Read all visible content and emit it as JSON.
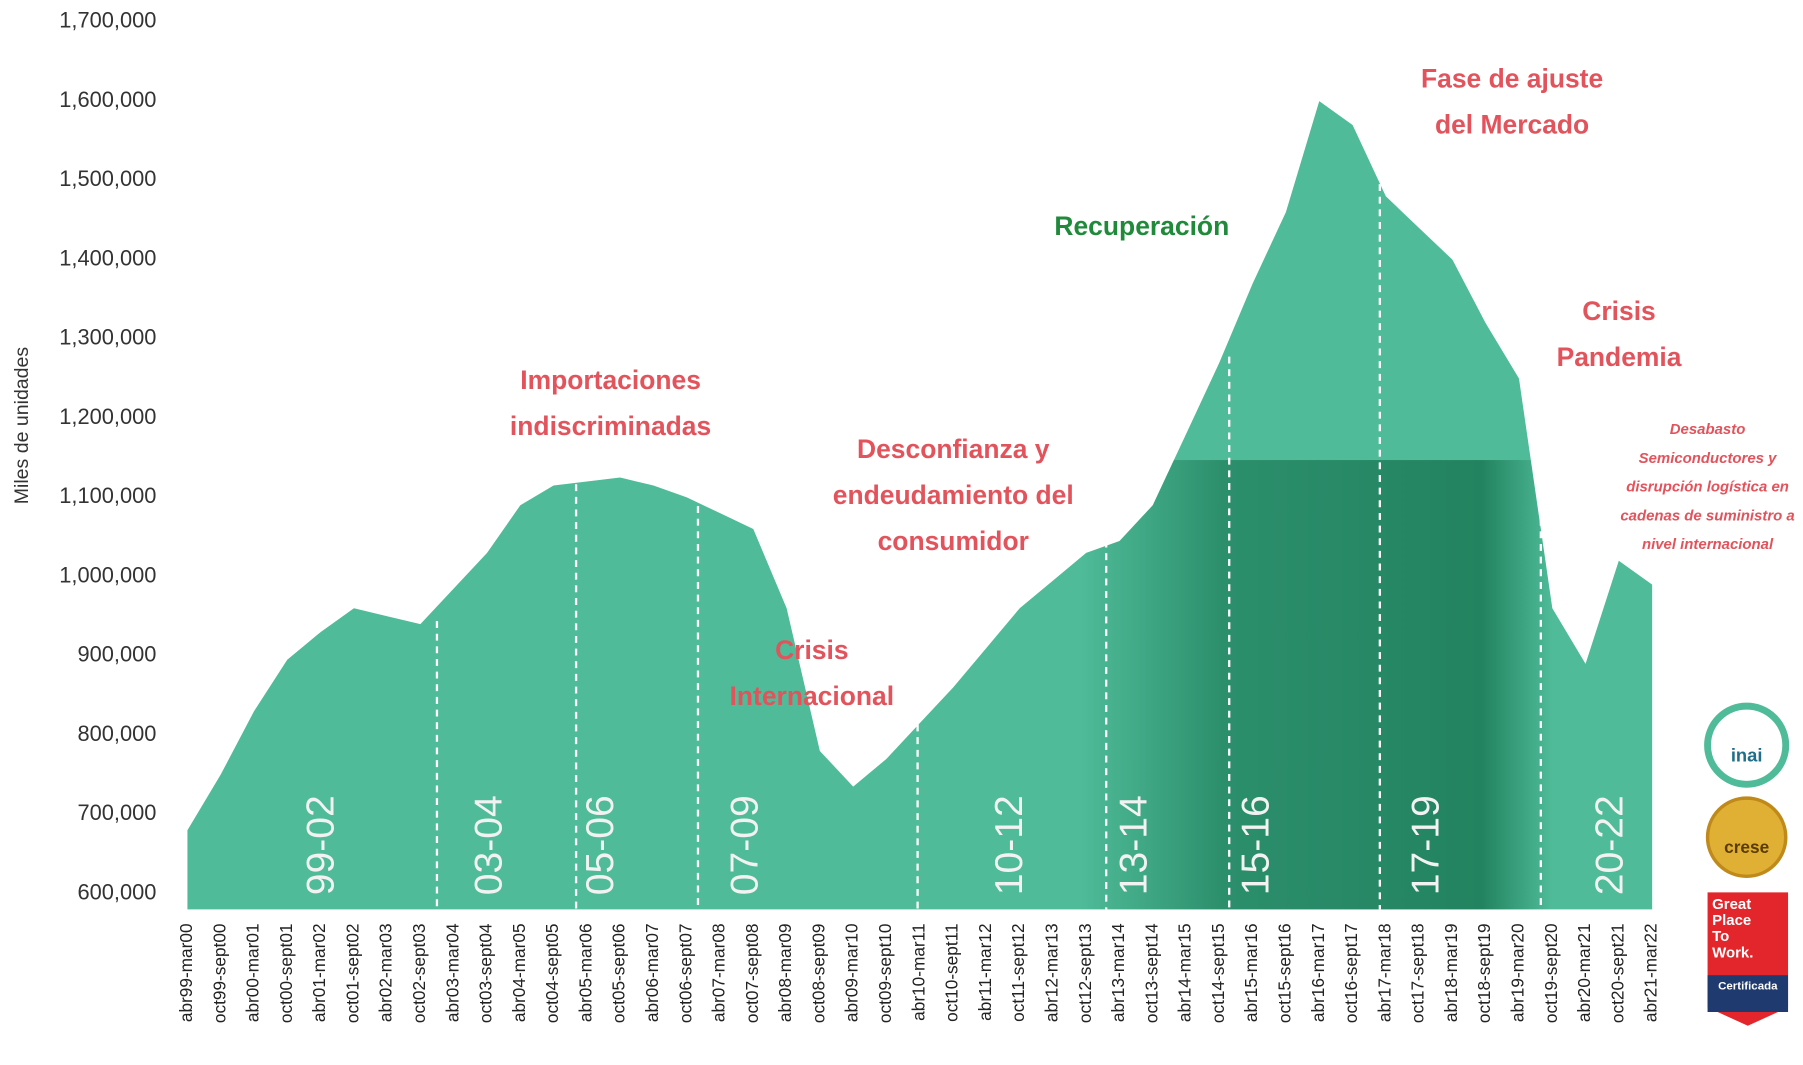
{
  "chart_data": {
    "type": "area",
    "y_label": "Miles de unidades",
    "color": "#4fbb98",
    "categories": [
      "abr99-mar00",
      "oct99-sept00",
      "abr00-mar01",
      "oct00-sept01",
      "abr01-mar02",
      "oct01-sept02",
      "abr02-mar03",
      "oct02-sept03",
      "abr03-mar04",
      "oct03-sept04",
      "abr04-mar05",
      "oct04-sept05",
      "abr05-mar06",
      "oct05-sept06",
      "abr06-mar07",
      "oct06-sept07",
      "abr07-mar08",
      "oct07-sept08",
      "abr08-mar09",
      "oct08-sept09",
      "abr09-mar10",
      "oct09-sept10",
      "abr10-mar11",
      "oct10-sept11",
      "abr11-mar12",
      "oct11-sept12",
      "abr12-mar13",
      "oct12-sept13",
      "abr13-mar14",
      "oct13-sept14",
      "abr14-mar15",
      "oct14-sept15",
      "abr15-mar16",
      "oct15-sept16",
      "abr16-mar17",
      "oct16-sept17",
      "abr17-mar18",
      "oct17-sept18",
      "abr18-mar19",
      "oct18-sept19",
      "abr19-mar20",
      "oct19-sept20",
      "abr20-mar21",
      "oct20-sept21",
      "abr21-mar22"
    ],
    "values": [
      680000,
      750000,
      830000,
      895000,
      930000,
      960000,
      950000,
      940000,
      985000,
      1030000,
      1090000,
      1115000,
      1120000,
      1125000,
      1115000,
      1100000,
      1080000,
      1060000,
      960000,
      780000,
      735000,
      770000,
      815000,
      860000,
      910000,
      960000,
      995000,
      1030000,
      1045000,
      1090000,
      1180000,
      1270000,
      1370000,
      1460000,
      1600000,
      1570000,
      1480000,
      1440000,
      1400000,
      1320000,
      1250000,
      960000,
      890000,
      1020000,
      990000
    ],
    "ylim": [
      580000,
      1700000
    ],
    "yticks": [
      {
        "value": 600000,
        "label": "600,000"
      },
      {
        "value": 700000,
        "label": "700,000"
      },
      {
        "value": 800000,
        "label": "800,000"
      },
      {
        "value": 900000,
        "label": "900,000"
      },
      {
        "value": 1000000,
        "label": "1,000,000"
      },
      {
        "value": 1100000,
        "label": "1,100,000"
      },
      {
        "value": 1200000,
        "label": "1,200,000"
      },
      {
        "value": 1300000,
        "label": "1,300,000"
      },
      {
        "value": 1400000,
        "label": "1,400,000"
      },
      {
        "value": 1500000,
        "label": "1,500,000"
      },
      {
        "value": 1600000,
        "label": "1,600,000"
      },
      {
        "value": 1700000,
        "label": "1,700,000"
      }
    ],
    "periods": [
      "99-02",
      "03-04",
      "05-06",
      "07-09",
      "10-12",
      "13-14",
      "15-16",
      "17-19",
      "20-22"
    ],
    "annotations": [
      {
        "lines": [
          "Importaciones",
          "indiscriminadas"
        ],
        "color": "#e2535c"
      },
      {
        "lines": [
          "Crisis",
          "Internacional"
        ],
        "color": "#e2535c"
      },
      {
        "lines": [
          "Desconfianza y",
          "endeudamiento del",
          "consumidor"
        ],
        "color": "#e2535c"
      },
      {
        "lines": [
          "Recuperación"
        ],
        "color": "#1f8a3a"
      },
      {
        "lines": [
          "Fase de ajuste",
          "del Mercado"
        ],
        "color": "#e2535c"
      },
      {
        "lines": [
          "Crisis",
          "Pandemia"
        ],
        "color": "#e2535c"
      }
    ],
    "note": [
      "Desabasto",
      "Semiconductores y",
      "disrupción logística en",
      "cadenas de suministro a",
      "nivel internacional"
    ],
    "badges": {
      "inai": "inai",
      "crese": "crese",
      "gptw": [
        "Great",
        "Place",
        "To",
        "Work."
      ],
      "gptw_sub": "Certificada"
    }
  }
}
